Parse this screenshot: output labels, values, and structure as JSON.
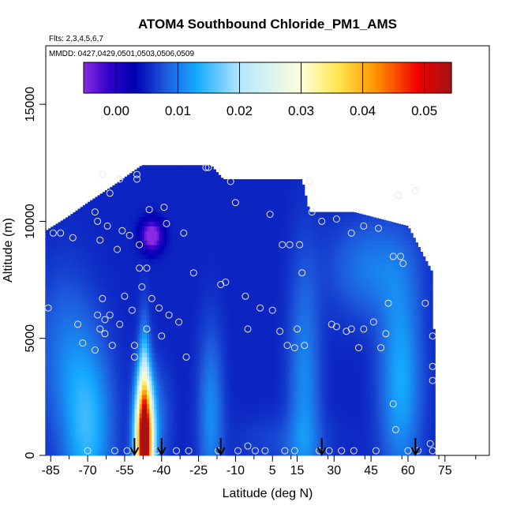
{
  "chart_data": {
    "type": "heatmap",
    "title": "ATOM4 Southbound Chloride_PM1_AMS",
    "flights_note": "Flts: 2,3,4,5,6,7",
    "dates_note": "MMDD: 0427,0429,0501,0503,0506,0509",
    "xlabel": "Latitude (deg N)",
    "ylabel": "Altitude (m)",
    "xlim": [
      -87,
      93
    ],
    "ylim": [
      0,
      17500
    ],
    "x_ticks": [
      -85,
      -70,
      -55,
      -40,
      -25,
      -10,
      5,
      15,
      30,
      45,
      60,
      75
    ],
    "x_tick_labels": [
      "-85",
      "-70",
      "-55",
      "-40",
      "-25",
      "-10",
      "5",
      "15",
      "30",
      "45",
      "60",
      "75"
    ],
    "y_ticks": [
      0,
      5000,
      10000,
      15000
    ],
    "y_tick_labels": [
      "0",
      "5000",
      "10000",
      "15000"
    ],
    "colorbar": {
      "range": [
        -0.0053,
        0.0544
      ],
      "ticks": [
        0.0,
        0.01,
        0.02,
        0.03,
        0.04,
        0.05
      ],
      "tick_labels": [
        "0.00",
        "0.01",
        "0.02",
        "0.03",
        "0.04",
        "0.05"
      ],
      "stops": [
        {
          "v": -0.0053,
          "c": "#8a2be2"
        },
        {
          "v": -0.001,
          "c": "#2d00c8"
        },
        {
          "v": 0.003,
          "c": "#0000b0"
        },
        {
          "v": 0.008,
          "c": "#1e5adc"
        },
        {
          "v": 0.013,
          "c": "#14aaff"
        },
        {
          "v": 0.02,
          "c": "#b4e6ff"
        },
        {
          "v": 0.03,
          "c": "#ffffdc"
        },
        {
          "v": 0.036,
          "c": "#ffe650"
        },
        {
          "v": 0.042,
          "c": "#ff9600"
        },
        {
          "v": 0.049,
          "c": "#f00000"
        },
        {
          "v": 0.0544,
          "c": "#a01414"
        }
      ]
    },
    "field": {
      "background": 0.005,
      "x_range": [
        -87,
        71
      ],
      "top_profile": [
        [
          -87,
          9600
        ],
        [
          -78,
          10200
        ],
        [
          -70,
          10800
        ],
        [
          -60,
          11500
        ],
        [
          -48,
          12400
        ],
        [
          -20,
          12400
        ],
        [
          -15,
          11800
        ],
        [
          17,
          11800
        ],
        [
          20,
          10400
        ],
        [
          38,
          10400
        ],
        [
          60,
          9800
        ],
        [
          70,
          7800
        ],
        [
          71,
          3000
        ]
      ],
      "features": [
        {
          "x": -47,
          "y": 500,
          "sx": 2.5,
          "sy": 1800,
          "amp": 0.05
        },
        {
          "x": -47,
          "y": 2600,
          "sx": 1.5,
          "sy": 2000,
          "amp": 0.012
        },
        {
          "x": -42,
          "y": 1500,
          "sx": 4,
          "sy": 1500,
          "amp": 0.004
        },
        {
          "x": -70,
          "y": 1200,
          "sx": 7,
          "sy": 2600,
          "amp": 0.009
        },
        {
          "x": -80,
          "y": 4500,
          "sx": 8,
          "sy": 2500,
          "amp": 0.004
        },
        {
          "x": -20,
          "y": 1800,
          "sx": 3.5,
          "sy": 2500,
          "amp": 0.006
        },
        {
          "x": 18,
          "y": 2500,
          "sx": 4.5,
          "sy": 4000,
          "amp": 0.006
        },
        {
          "x": 57,
          "y": 3200,
          "sx": 6,
          "sy": 3000,
          "amp": 0.008
        },
        {
          "x": 45,
          "y": 8000,
          "sx": 12,
          "sy": 1500,
          "amp": 0.005
        },
        {
          "x": 10,
          "y": 600,
          "sx": 14,
          "sy": 800,
          "amp": 0.002
        },
        {
          "x": -44,
          "y": 9400,
          "sx": 3,
          "sy": 450,
          "amp": -0.013
        }
      ]
    },
    "flight_points": [
      [
        -86,
        6300
      ],
      [
        -84,
        9500
      ],
      [
        -81,
        9500
      ],
      [
        -76,
        9300
      ],
      [
        -74,
        5600
      ],
      [
        -72,
        4800
      ],
      [
        -70,
        200
      ],
      [
        -67,
        4500
      ],
      [
        -67,
        10400
      ],
      [
        -66,
        10000
      ],
      [
        -66,
        6000
      ],
      [
        -65,
        5400
      ],
      [
        -65,
        9200
      ],
      [
        -64,
        6700
      ],
      [
        -64,
        12000
      ],
      [
        -63,
        5200
      ],
      [
        -63,
        5800
      ],
      [
        -62,
        9800
      ],
      [
        -61,
        6000
      ],
      [
        -61,
        11200
      ],
      [
        -60,
        4700
      ],
      [
        -59,
        200
      ],
      [
        -58,
        8800
      ],
      [
        -57,
        5600
      ],
      [
        -57,
        11800
      ],
      [
        -56,
        9600
      ],
      [
        -55,
        6800
      ],
      [
        -54,
        200
      ],
      [
        -53,
        9400
      ],
      [
        -52,
        6200
      ],
      [
        -51,
        4700
      ],
      [
        -51,
        4200
      ],
      [
        -50,
        11800
      ],
      [
        -50,
        12000
      ],
      [
        -49,
        8000
      ],
      [
        -49,
        9000
      ],
      [
        -48,
        7200
      ],
      [
        -46,
        5400
      ],
      [
        -46,
        8000
      ],
      [
        -45,
        10500
      ],
      [
        -44,
        6700
      ],
      [
        -42,
        200
      ],
      [
        -41,
        6300
      ],
      [
        -40,
        5100
      ],
      [
        -39,
        10600
      ],
      [
        -38,
        9900
      ],
      [
        -37,
        6000
      ],
      [
        -34,
        200
      ],
      [
        -33,
        5700
      ],
      [
        -31,
        9500
      ],
      [
        -30,
        4200
      ],
      [
        -29,
        200
      ],
      [
        -27,
        7800
      ],
      [
        -22,
        12300
      ],
      [
        -21,
        12300
      ],
      [
        -17,
        200
      ],
      [
        -16,
        7300
      ],
      [
        -14,
        7400
      ],
      [
        -12,
        11700
      ],
      [
        -10,
        10800
      ],
      [
        -9,
        200
      ],
      [
        -6,
        6800
      ],
      [
        -5,
        400
      ],
      [
        -5,
        5400
      ],
      [
        -2,
        200
      ],
      [
        0,
        6300
      ],
      [
        2,
        200
      ],
      [
        4,
        10300
      ],
      [
        5,
        6200
      ],
      [
        8,
        5300
      ],
      [
        9,
        9000
      ],
      [
        10,
        200
      ],
      [
        11,
        4700
      ],
      [
        12,
        9000
      ],
      [
        14,
        200
      ],
      [
        14,
        4600
      ],
      [
        15,
        5400
      ],
      [
        16,
        9000
      ],
      [
        17,
        7800
      ],
      [
        18,
        4700
      ],
      [
        20,
        11700
      ],
      [
        21,
        10400
      ],
      [
        24,
        200
      ],
      [
        25,
        10000
      ],
      [
        28,
        200
      ],
      [
        29,
        5600
      ],
      [
        31,
        5500
      ],
      [
        31,
        10100
      ],
      [
        33,
        200
      ],
      [
        35,
        5300
      ],
      [
        37,
        5400
      ],
      [
        37,
        9500
      ],
      [
        38,
        200
      ],
      [
        40,
        4600
      ],
      [
        42,
        5400
      ],
      [
        42,
        9800
      ],
      [
        46,
        5700
      ],
      [
        47,
        200
      ],
      [
        48,
        9700
      ],
      [
        49,
        4600
      ],
      [
        51,
        5200
      ],
      [
        52,
        6500
      ],
      [
        54,
        2200
      ],
      [
        54,
        8500
      ],
      [
        55,
        1100
      ],
      [
        56,
        11100
      ],
      [
        57,
        8500
      ],
      [
        58,
        8200
      ],
      [
        60,
        200
      ],
      [
        63,
        11300
      ],
      [
        64,
        200
      ],
      [
        67,
        6500
      ],
      [
        69,
        500
      ],
      [
        70,
        200
      ],
      [
        70,
        3800
      ],
      [
        70,
        3200
      ],
      [
        70,
        5100
      ]
    ],
    "arrow_latitudes": [
      -51,
      -40,
      -16,
      25,
      63
    ]
  }
}
